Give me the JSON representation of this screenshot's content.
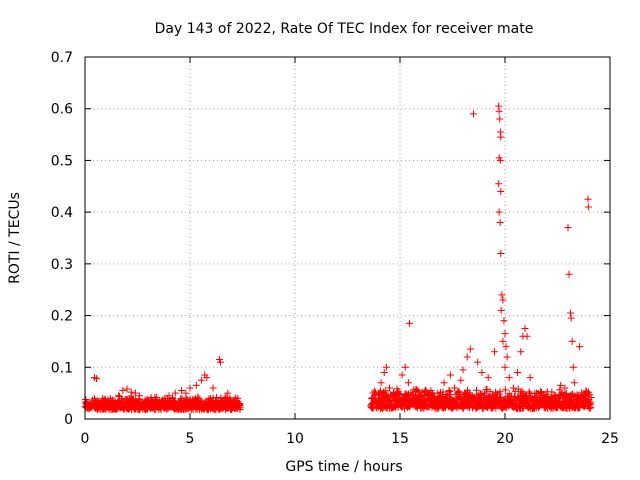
{
  "chart_data": {
    "type": "scatter",
    "title": "Day 143 of 2022, Rate Of TEC Index for receiver mate",
    "xlabel": "GPS time / hours",
    "ylabel": "ROTI / TECUs",
    "xlim": [
      0,
      25
    ],
    "ylim": [
      0,
      0.7
    ],
    "xticks": [
      0,
      5,
      10,
      15,
      20,
      25
    ],
    "yticks": [
      0,
      0.1,
      0.2,
      0.3,
      0.4,
      0.5,
      0.6,
      0.7
    ],
    "xtick_labels": [
      "0",
      "5",
      "10",
      "15",
      "20",
      "25"
    ],
    "ytick_labels": [
      "0",
      "0.1",
      "0.2",
      "0.3",
      "0.4",
      "0.5",
      "0.6",
      "0.7"
    ],
    "grid": true,
    "marker": "plus",
    "color": "#ff0000",
    "series": [
      {
        "points": [
          [
            0.05,
            0.033
          ],
          [
            0.2,
            0.025
          ],
          [
            0.35,
            0.03
          ],
          [
            0.45,
            0.08
          ],
          [
            0.55,
            0.078
          ],
          [
            0.6,
            0.035
          ],
          [
            0.9,
            0.03
          ],
          [
            1.2,
            0.04
          ],
          [
            1.6,
            0.045
          ],
          [
            1.8,
            0.055
          ],
          [
            2.0,
            0.058
          ],
          [
            2.2,
            0.052
          ],
          [
            2.4,
            0.05
          ],
          [
            2.6,
            0.045
          ],
          [
            3.0,
            0.03
          ],
          [
            3.4,
            0.025
          ],
          [
            3.8,
            0.04
          ],
          [
            4.0,
            0.045
          ],
          [
            4.3,
            0.05
          ],
          [
            4.6,
            0.055
          ],
          [
            4.8,
            0.05
          ],
          [
            5.0,
            0.06
          ],
          [
            5.3,
            0.065
          ],
          [
            5.55,
            0.075
          ],
          [
            5.7,
            0.085
          ],
          [
            5.8,
            0.08
          ],
          [
            6.1,
            0.06
          ],
          [
            6.4,
            0.115
          ],
          [
            6.45,
            0.11
          ],
          [
            6.8,
            0.05
          ],
          [
            7.0,
            0.035
          ],
          [
            7.3,
            0.025
          ],
          [
            13.8,
            0.05
          ],
          [
            14.1,
            0.07
          ],
          [
            14.25,
            0.09
          ],
          [
            14.35,
            0.1
          ],
          [
            14.5,
            0.06
          ],
          [
            14.9,
            0.05
          ],
          [
            15.1,
            0.085
          ],
          [
            15.25,
            0.1
          ],
          [
            15.4,
            0.07
          ],
          [
            15.45,
            0.185
          ],
          [
            15.7,
            0.04
          ],
          [
            16.2,
            0.045
          ],
          [
            16.8,
            0.05
          ],
          [
            17.1,
            0.07
          ],
          [
            17.4,
            0.085
          ],
          [
            17.6,
            0.06
          ],
          [
            17.9,
            0.075
          ],
          [
            18.0,
            0.095
          ],
          [
            18.2,
            0.12
          ],
          [
            18.35,
            0.135
          ],
          [
            18.5,
            0.59
          ],
          [
            18.7,
            0.11
          ],
          [
            18.9,
            0.09
          ],
          [
            19.2,
            0.08
          ],
          [
            19.5,
            0.13
          ],
          [
            19.7,
            0.605
          ],
          [
            19.72,
            0.595
          ],
          [
            19.75,
            0.58
          ],
          [
            19.78,
            0.555
          ],
          [
            19.8,
            0.545
          ],
          [
            19.72,
            0.505
          ],
          [
            19.78,
            0.5
          ],
          [
            19.7,
            0.455
          ],
          [
            19.8,
            0.44
          ],
          [
            19.72,
            0.4
          ],
          [
            19.77,
            0.38
          ],
          [
            19.8,
            0.32
          ],
          [
            19.85,
            0.24
          ],
          [
            19.9,
            0.23
          ],
          [
            19.82,
            0.21
          ],
          [
            19.95,
            0.19
          ],
          [
            20.0,
            0.165
          ],
          [
            19.9,
            0.15
          ],
          [
            20.05,
            0.14
          ],
          [
            20.1,
            0.12
          ],
          [
            20.0,
            0.1
          ],
          [
            20.2,
            0.08
          ],
          [
            20.4,
            0.06
          ],
          [
            20.6,
            0.09
          ],
          [
            20.75,
            0.13
          ],
          [
            20.85,
            0.16
          ],
          [
            20.95,
            0.175
          ],
          [
            21.05,
            0.16
          ],
          [
            21.2,
            0.08
          ],
          [
            21.5,
            0.05
          ],
          [
            21.9,
            0.04
          ],
          [
            22.3,
            0.035
          ],
          [
            22.65,
            0.065
          ],
          [
            22.85,
            0.06
          ],
          [
            23.0,
            0.37
          ],
          [
            23.05,
            0.28
          ],
          [
            23.12,
            0.205
          ],
          [
            23.15,
            0.195
          ],
          [
            23.2,
            0.15
          ],
          [
            23.25,
            0.1
          ],
          [
            23.3,
            0.07
          ],
          [
            23.45,
            0.045
          ],
          [
            23.55,
            0.14
          ],
          [
            23.7,
            0.035
          ],
          [
            23.95,
            0.425
          ],
          [
            23.97,
            0.41
          ],
          [
            24.0,
            0.02
          ]
        ],
        "dense_bands": [
          {
            "x_range": [
              0,
              7.4
            ],
            "base": 0.018,
            "peak": 0.045
          },
          {
            "x_range": [
              13.6,
              24.1
            ],
            "base": 0.02,
            "peak": 0.06
          }
        ]
      }
    ]
  }
}
